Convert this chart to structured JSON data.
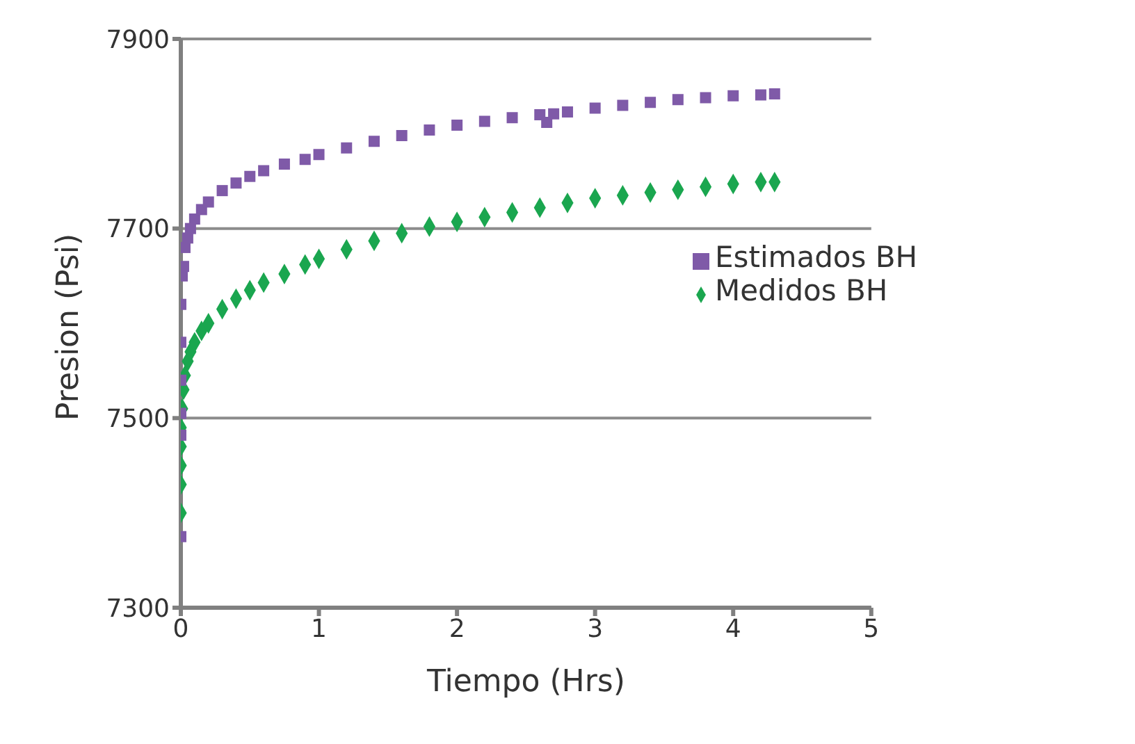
{
  "chart_data": {
    "type": "scatter",
    "xlabel": "Tiempo (Hrs)",
    "ylabel": "Presion (Psi)",
    "xlim": [
      0,
      5
    ],
    "xticks": [
      0,
      1,
      2,
      3,
      4,
      5
    ],
    "ylim": [
      7300,
      7900
    ],
    "yticks": [
      7300,
      7500,
      7700,
      7900
    ],
    "grid": "y",
    "legend": "right",
    "series": [
      {
        "name": "Medidos BH",
        "color": "#1aa64f",
        "marker": "diamond",
        "x": [
          0,
          0,
          0,
          0,
          0,
          0.01,
          0.02,
          0.03,
          0.05,
          0.07,
          0.1,
          0.15,
          0.2,
          0.3,
          0.4,
          0.5,
          0.6,
          0.75,
          0.9,
          1,
          1.2,
          1.4,
          1.6,
          1.8,
          2,
          2.2,
          2.4,
          2.6,
          2.8,
          3,
          3.2,
          3.4,
          3.6,
          3.8,
          4,
          4.2,
          4.3
        ],
        "values": [
          7400,
          7430,
          7450,
          7470,
          7490,
          7510,
          7530,
          7545,
          7560,
          7570,
          7580,
          7592,
          7600,
          7615,
          7626,
          7635,
          7643,
          7652,
          7662,
          7668,
          7678,
          7687,
          7695,
          7702,
          7707,
          7712,
          7717,
          7722,
          7727,
          7732,
          7735,
          7738,
          7741,
          7744,
          7747,
          7749,
          7749
        ]
      },
      {
        "name": "Estimados BH",
        "color": "#7f5aa8",
        "marker": "square",
        "x": [
          0,
          0,
          0,
          0,
          0,
          0,
          0.01,
          0.02,
          0.03,
          0.05,
          0.07,
          0.1,
          0.15,
          0.2,
          0.3,
          0.4,
          0.5,
          0.6,
          0.75,
          0.9,
          1,
          1.2,
          1.4,
          1.6,
          1.8,
          2,
          2.2,
          2.4,
          2.6,
          2.65,
          2.7,
          2.8,
          3,
          3.2,
          3.4,
          3.6,
          3.8,
          4,
          4.2,
          4.3
        ],
        "values": [
          7375,
          7482,
          7505,
          7540,
          7580,
          7620,
          7650,
          7660,
          7680,
          7690,
          7700,
          7710,
          7720,
          7728,
          7740,
          7748,
          7755,
          7761,
          7768,
          7773,
          7778,
          7785,
          7792,
          7798,
          7804,
          7809,
          7813,
          7817,
          7820,
          7812,
          7821,
          7823,
          7827,
          7830,
          7833,
          7836,
          7838,
          7840,
          7841,
          7842
        ]
      }
    ]
  }
}
